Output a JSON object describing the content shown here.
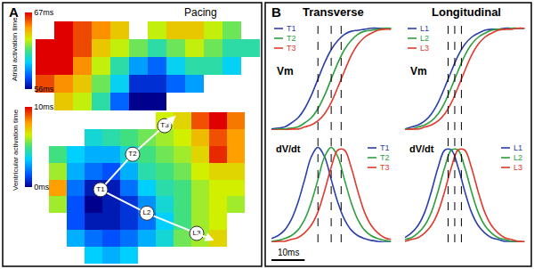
{
  "chart_data": [
    {
      "type": "heatmap",
      "panel": "A",
      "title": "Pacing",
      "colorbar_title": "Atrial activation time",
      "zlim": [
        56,
        67
      ],
      "zticks": [
        {
          "value": 56,
          "label": "56ms"
        },
        {
          "value": 67,
          "label": "67ms"
        }
      ],
      "tick_labels": false,
      "z": [
        [
          null,
          67,
          66,
          65,
          64,
          null,
          63,
          64,
          64,
          63,
          62,
          null
        ],
        [
          67,
          67,
          66,
          64,
          63,
          62,
          61,
          62,
          63,
          62,
          61,
          61
        ],
        [
          67,
          67,
          65,
          63,
          61,
          59,
          58,
          60,
          61,
          61,
          60,
          null
        ],
        [
          66,
          65,
          64,
          62,
          60,
          57,
          57,
          58,
          59,
          null,
          null,
          null
        ],
        [
          null,
          64,
          63,
          61,
          58,
          56,
          56,
          null,
          null,
          null,
          null,
          null
        ]
      ]
    },
    {
      "type": "heatmap",
      "colorbar_title": "Ventricular activation time",
      "zlim": [
        0,
        10
      ],
      "zticks": [
        {
          "value": 0,
          "label": "0ms"
        },
        {
          "value": 10,
          "label": "10ms"
        }
      ],
      "tick_labels": false,
      "z": [
        [
          null,
          null,
          null,
          null,
          null,
          null,
          6.5,
          7,
          9,
          10,
          8.5
        ],
        [
          null,
          null,
          4,
          4.5,
          5,
          5.5,
          6,
          6.5,
          7.5,
          9,
          8
        ],
        [
          5,
          3.5,
          3,
          3,
          4,
          5,
          5.5,
          6,
          7,
          9.5,
          8
        ],
        [
          6,
          3,
          2,
          1.5,
          3,
          4.5,
          5,
          5.5,
          6.5,
          7,
          7
        ],
        [
          8,
          2,
          0.5,
          0.5,
          2,
          3.5,
          4.5,
          5,
          6,
          6.5,
          6.5
        ],
        [
          6,
          1.5,
          0,
          0.5,
          1,
          2.5,
          4,
          5,
          6,
          6.5,
          6
        ],
        [
          null,
          1.5,
          0.5,
          0.5,
          1,
          2,
          3.5,
          5,
          6,
          6.5,
          null
        ],
        [
          null,
          3,
          2,
          1.5,
          2,
          3,
          4,
          5.5,
          6,
          7,
          null
        ],
        [
          null,
          null,
          3.5,
          3,
          3.5,
          null,
          null,
          null,
          null,
          null,
          null
        ]
      ],
      "points": [
        {
          "label": "T1",
          "x": 2.4,
          "y": 4.1
        },
        {
          "label": "T2",
          "x": 4.2,
          "y": 2
        },
        {
          "label": "T3",
          "x": 6,
          "y": 0.3
        },
        {
          "label": "L2",
          "x": 5,
          "y": 5.5
        },
        {
          "label": "L3",
          "x": 7.8,
          "y": 6.7
        }
      ],
      "paths": [
        [
          "T1",
          "T2",
          "T3"
        ],
        [
          "T1",
          "L2",
          "L3"
        ]
      ]
    },
    {
      "type": "line",
      "panel": "B",
      "title": "Transverse",
      "x": [
        0,
        2,
        4,
        6,
        8,
        10,
        12,
        14,
        16,
        18,
        20,
        22,
        24,
        26,
        28,
        30,
        32,
        34,
        36
      ],
      "xlim": [
        0,
        37
      ],
      "ylim": [
        0,
        1.05
      ],
      "tick_labels": false,
      "grid": false,
      "vlines": [
        14,
        18,
        21
      ],
      "scale_bar": {
        "value": 10,
        "label": "10ms"
      },
      "subplots": [
        {
          "ylabel": "Vm",
          "legend": "upper left",
          "series": [
            {
              "name": "T1",
              "color": "#2b3fa9",
              "values": [
                0.01,
                0.02,
                0.03,
                0.07,
                0.12,
                0.21,
                0.34,
                0.5,
                0.66,
                0.79,
                0.88,
                0.94,
                0.97,
                0.98,
                0.99,
                1,
                1,
                1,
                1
              ]
            },
            {
              "name": "T2",
              "color": "#2e9e3e",
              "values": [
                0,
                0.01,
                0.01,
                0.02,
                0.03,
                0.07,
                0.12,
                0.21,
                0.34,
                0.5,
                0.66,
                0.79,
                0.88,
                0.94,
                0.97,
                0.98,
                0.99,
                1,
                1
              ]
            },
            {
              "name": "T3",
              "color": "#e03a2e",
              "values": [
                0,
                0,
                0,
                0.01,
                0.01,
                0.03,
                0.05,
                0.09,
                0.16,
                0.27,
                0.42,
                0.58,
                0.73,
                0.84,
                0.91,
                0.95,
                0.98,
                0.99,
                0.99
              ]
            }
          ]
        },
        {
          "ylabel": "dV/dt",
          "legend": "upper right",
          "series": [
            {
              "name": "T1",
              "color": "#2b3fa9",
              "values": [
                0.04,
                0.07,
                0.13,
                0.24,
                0.42,
                0.66,
                0.9,
                1,
                0.9,
                0.66,
                0.42,
                0.24,
                0.13,
                0.07,
                0.04,
                0.02,
                0.01,
                0,
                0
              ]
            },
            {
              "name": "T2",
              "color": "#2e9e3e",
              "values": [
                0.01,
                0.02,
                0.04,
                0.07,
                0.13,
                0.24,
                0.42,
                0.66,
                0.9,
                1,
                0.9,
                0.66,
                0.42,
                0.24,
                0.13,
                0.07,
                0.04,
                0.02,
                0.01
              ]
            },
            {
              "name": "T3",
              "color": "#e03a2e",
              "values": [
                0,
                0.01,
                0.01,
                0.03,
                0.05,
                0.1,
                0.18,
                0.32,
                0.54,
                0.79,
                0.97,
                0.97,
                0.79,
                0.54,
                0.32,
                0.18,
                0.1,
                0.05,
                0.03
              ]
            }
          ]
        }
      ]
    },
    {
      "type": "line",
      "title": "Longitudinal",
      "x": [
        0,
        2,
        4,
        6,
        8,
        10,
        12,
        14,
        16,
        18,
        20,
        22,
        24,
        26,
        28,
        30,
        32,
        34,
        36
      ],
      "xlim": [
        0,
        37
      ],
      "ylim": [
        0,
        1.05
      ],
      "tick_labels": false,
      "grid": false,
      "vlines": [
        13,
        15,
        17
      ],
      "subplots": [
        {
          "ylabel": "Vm",
          "legend": "upper left",
          "series": [
            {
              "name": "L1",
              "color": "#2b3fa9",
              "values": [
                0.01,
                0.03,
                0.05,
                0.09,
                0.16,
                0.27,
                0.42,
                0.58,
                0.73,
                0.84,
                0.91,
                0.95,
                0.98,
                0.99,
                0.99,
                1,
                1,
                1,
                1
              ]
            },
            {
              "name": "L2",
              "color": "#2e9e3e",
              "values": [
                0.01,
                0.01,
                0.03,
                0.05,
                0.09,
                0.16,
                0.27,
                0.42,
                0.58,
                0.73,
                0.84,
                0.91,
                0.95,
                0.98,
                0.99,
                0.99,
                1,
                1,
                1
              ]
            },
            {
              "name": "L3",
              "color": "#e03a2e",
              "values": [
                0,
                0.01,
                0.01,
                0.03,
                0.05,
                0.09,
                0.16,
                0.27,
                0.42,
                0.58,
                0.73,
                0.84,
                0.91,
                0.95,
                0.98,
                0.99,
                0.99,
                1,
                1
              ]
            }
          ]
        },
        {
          "ylabel": "dV/dt",
          "legend": "upper right",
          "series": [
            {
              "name": "L1",
              "color": "#2b3fa9",
              "values": [
                0.05,
                0.1,
                0.18,
                0.32,
                0.54,
                0.79,
                0.97,
                0.97,
                0.79,
                0.54,
                0.32,
                0.18,
                0.1,
                0.05,
                0.03,
                0.01,
                0.01,
                0,
                0
              ]
            },
            {
              "name": "L2",
              "color": "#2e9e3e",
              "values": [
                0.03,
                0.05,
                0.1,
                0.18,
                0.32,
                0.54,
                0.79,
                0.97,
                0.97,
                0.79,
                0.54,
                0.32,
                0.18,
                0.1,
                0.05,
                0.03,
                0.01,
                0.01,
                0
              ]
            },
            {
              "name": "L3",
              "color": "#e03a2e",
              "values": [
                0.01,
                0.03,
                0.05,
                0.1,
                0.18,
                0.32,
                0.54,
                0.79,
                0.97,
                0.97,
                0.79,
                0.54,
                0.32,
                0.18,
                0.1,
                0.05,
                0.03,
                0.01,
                0.01
              ]
            }
          ]
        }
      ]
    }
  ]
}
